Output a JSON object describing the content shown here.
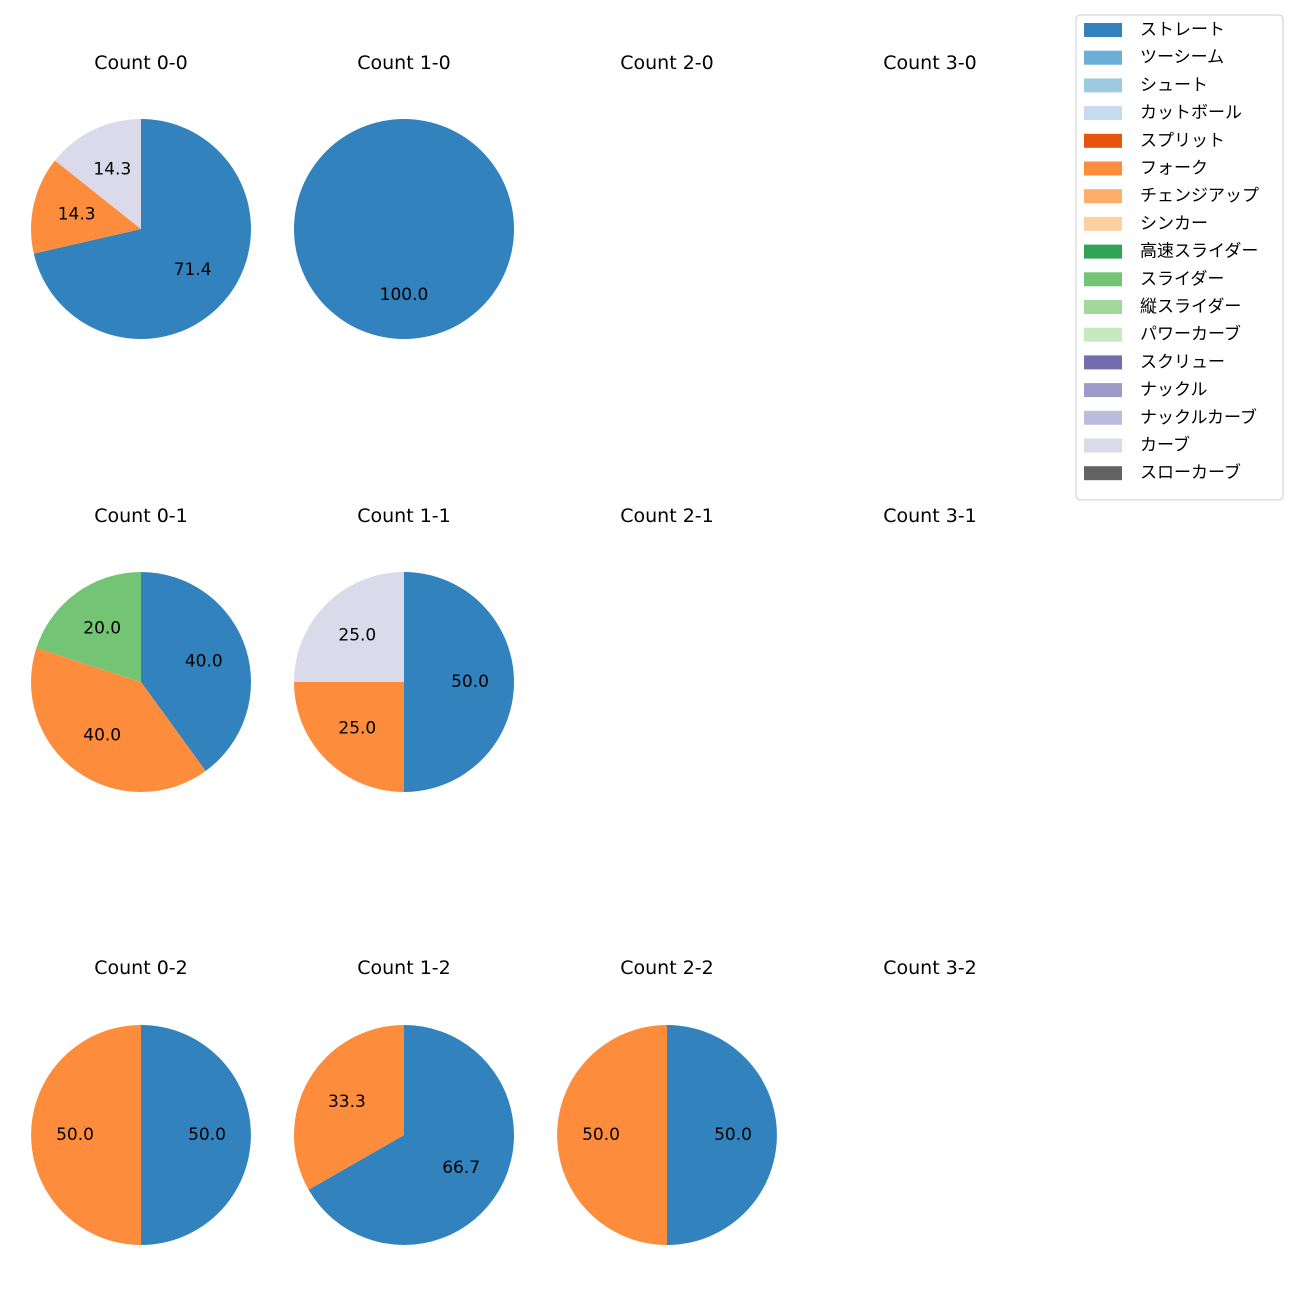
{
  "chart_data": {
    "type": "pie",
    "start_angle_deg": 90,
    "direction": "clockwise",
    "legend": {
      "placement": "top-right",
      "entries": [
        {
          "label": "ストレート",
          "color": "#3182bd"
        },
        {
          "label": "ツーシーム",
          "color": "#6baed6"
        },
        {
          "label": "シュート",
          "color": "#9ecae1"
        },
        {
          "label": "カットボール",
          "color": "#c6dbef"
        },
        {
          "label": "スプリット",
          "color": "#e6550d"
        },
        {
          "label": "フォーク",
          "color": "#fd8d3c"
        },
        {
          "label": "チェンジアップ",
          "color": "#fdae6b"
        },
        {
          "label": "シンカー",
          "color": "#fdd0a2"
        },
        {
          "label": "高速スライダー",
          "color": "#31a354"
        },
        {
          "label": "スライダー",
          "color": "#74c476"
        },
        {
          "label": "縦スライダー",
          "color": "#a1d99b"
        },
        {
          "label": "パワーカーブ",
          "color": "#c7e9c0"
        },
        {
          "label": "スクリュー",
          "color": "#756bb1"
        },
        {
          "label": "ナックル",
          "color": "#9e9ac8"
        },
        {
          "label": "ナックルカーブ",
          "color": "#bcbddc"
        },
        {
          "label": "カーブ",
          "color": "#dadaeb"
        },
        {
          "label": "スローカーブ",
          "color": "#636363"
        }
      ]
    },
    "panels": [
      {
        "title": "Count 0-0",
        "slices": [
          {
            "pitch": "ストレート",
            "value": 71.4,
            "label": "71.4"
          },
          {
            "pitch": "フォーク",
            "value": 14.3,
            "label": "14.3"
          },
          {
            "pitch": "カーブ",
            "value": 14.3,
            "label": "14.3"
          }
        ]
      },
      {
        "title": "Count 1-0",
        "slices": [
          {
            "pitch": "ストレート",
            "value": 100.0,
            "label": "100.0"
          }
        ]
      },
      {
        "title": "Count 2-0",
        "slices": []
      },
      {
        "title": "Count 3-0",
        "slices": []
      },
      {
        "title": "Count 0-1",
        "slices": [
          {
            "pitch": "ストレート",
            "value": 40.0,
            "label": "40.0"
          },
          {
            "pitch": "フォーク",
            "value": 40.0,
            "label": "40.0"
          },
          {
            "pitch": "スライダー",
            "value": 20.0,
            "label": "20.0"
          }
        ]
      },
      {
        "title": "Count 1-1",
        "slices": [
          {
            "pitch": "ストレート",
            "value": 50.0,
            "label": "50.0"
          },
          {
            "pitch": "フォーク",
            "value": 25.0,
            "label": "25.0"
          },
          {
            "pitch": "カーブ",
            "value": 25.0,
            "label": "25.0"
          }
        ]
      },
      {
        "title": "Count 2-1",
        "slices": []
      },
      {
        "title": "Count 3-1",
        "slices": []
      },
      {
        "title": "Count 0-2",
        "slices": [
          {
            "pitch": "ストレート",
            "value": 50.0,
            "label": "50.0"
          },
          {
            "pitch": "フォーク",
            "value": 50.0,
            "label": "50.0"
          }
        ]
      },
      {
        "title": "Count 1-2",
        "slices": [
          {
            "pitch": "ストレート",
            "value": 66.7,
            "label": "66.7"
          },
          {
            "pitch": "フォーク",
            "value": 33.3,
            "label": "33.3"
          }
        ]
      },
      {
        "title": "Count 2-2",
        "slices": [
          {
            "pitch": "ストレート",
            "value": 50.0,
            "label": "50.0"
          },
          {
            "pitch": "フォーク",
            "value": 50.0,
            "label": "50.0"
          }
        ]
      },
      {
        "title": "Count 3-2",
        "slices": []
      }
    ]
  }
}
